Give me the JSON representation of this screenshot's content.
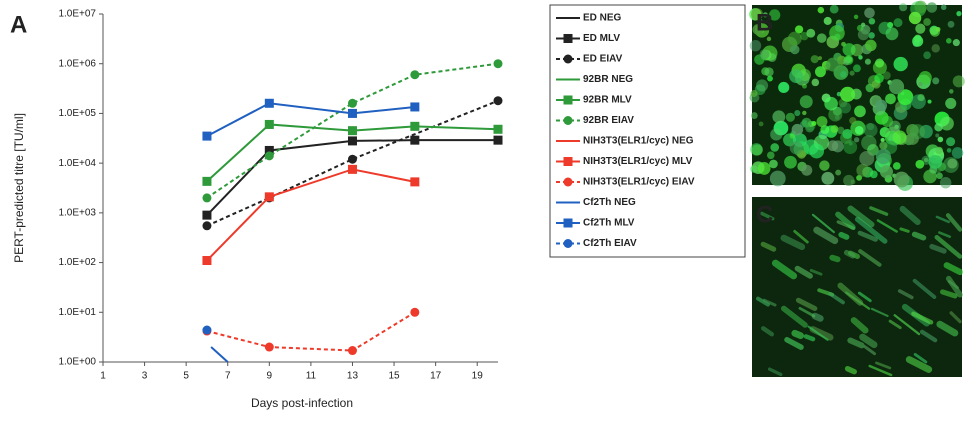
{
  "chart_data": {
    "type": "line",
    "panel_label": "A",
    "panel_labels": [
      "B",
      "C"
    ],
    "xlabel": "Days post-infection",
    "ylabel": "PERT-predicted titre [TU/ml]",
    "xlim": [
      1,
      20
    ],
    "xticks": [
      1,
      3,
      5,
      7,
      9,
      11,
      13,
      15,
      17,
      19
    ],
    "ylim": [
      1,
      10000000
    ],
    "ylog": true,
    "yticks": [
      {
        "value": 1,
        "label": "1.0E+00"
      },
      {
        "value": 10,
        "label": "1.0E+01"
      },
      {
        "value": 100,
        "label": "1.0E+02"
      },
      {
        "value": 1000,
        "label": "1.0E+03"
      },
      {
        "value": 10000,
        "label": "1.0E+04"
      },
      {
        "value": 100000,
        "label": "1.0E+05"
      },
      {
        "value": 1000000,
        "label": "1.0E+06"
      },
      {
        "value": 10000000,
        "label": "1.0E+07"
      }
    ],
    "legend": "right",
    "series": [
      {
        "name": "ED NEG",
        "color": "#222222",
        "linestyle": "solid",
        "marker": "none",
        "x": [],
        "values": []
      },
      {
        "name": "ED MLV",
        "color": "#222222",
        "linestyle": "solid",
        "marker": "square",
        "x": [
          6,
          9,
          13,
          16,
          20
        ],
        "values": [
          900,
          18000,
          28000,
          29000,
          29000
        ]
      },
      {
        "name": "ED EIAV",
        "color": "#222222",
        "linestyle": "dashed",
        "marker": "circle",
        "x": [
          6,
          9,
          13,
          20
        ],
        "values": [
          550,
          2000,
          12000,
          180000
        ]
      },
      {
        "name": "92BR NEG",
        "color": "#2e9a3a",
        "linestyle": "solid",
        "marker": "none",
        "x": [],
        "values": []
      },
      {
        "name": "92BR MLV",
        "color": "#2e9a3a",
        "linestyle": "solid",
        "marker": "square",
        "x": [
          6,
          9,
          13,
          16,
          20
        ],
        "values": [
          4300,
          60000,
          45000,
          55000,
          48000
        ]
      },
      {
        "name": "92BR EIAV",
        "color": "#2e9a3a",
        "linestyle": "dashed",
        "marker": "circle",
        "x": [
          6,
          9,
          13,
          16,
          20
        ],
        "values": [
          2000,
          14000,
          160000,
          600000,
          1000000
        ]
      },
      {
        "name": "NIH3T3(ELR1/cyc) NEG",
        "color": "#ee3a2a",
        "linestyle": "solid",
        "marker": "none",
        "x": [],
        "values": []
      },
      {
        "name": "NIH3T3(ELR1/cyc) MLV",
        "color": "#ee3a2a",
        "linestyle": "solid",
        "marker": "square",
        "x": [
          6,
          9,
          13,
          16
        ],
        "values": [
          110,
          2100,
          7500,
          4200
        ]
      },
      {
        "name": "NIH3T3(ELR1/cyc) EIAV",
        "color": "#ee3a2a",
        "linestyle": "dashed",
        "marker": "circle",
        "x": [
          6,
          9,
          13,
          16
        ],
        "values": [
          4.2,
          2,
          1.7,
          10
        ]
      },
      {
        "name": "Cf2Th NEG",
        "color": "#2060c0",
        "linestyle": "solid",
        "marker": "none",
        "x": [
          6.2,
          7
        ],
        "values": [
          2,
          1
        ]
      },
      {
        "name": "Cf2Th MLV",
        "color": "#2060c0",
        "linestyle": "solid",
        "marker": "square",
        "x": [
          6,
          9,
          13,
          16
        ],
        "values": [
          35000,
          160000,
          100000,
          135000
        ]
      },
      {
        "name": "Cf2Th EIAV",
        "color": "#2060c0",
        "linestyle": "dashed",
        "marker": "circle",
        "x": [
          6
        ],
        "values": [
          4.4
        ]
      }
    ]
  }
}
